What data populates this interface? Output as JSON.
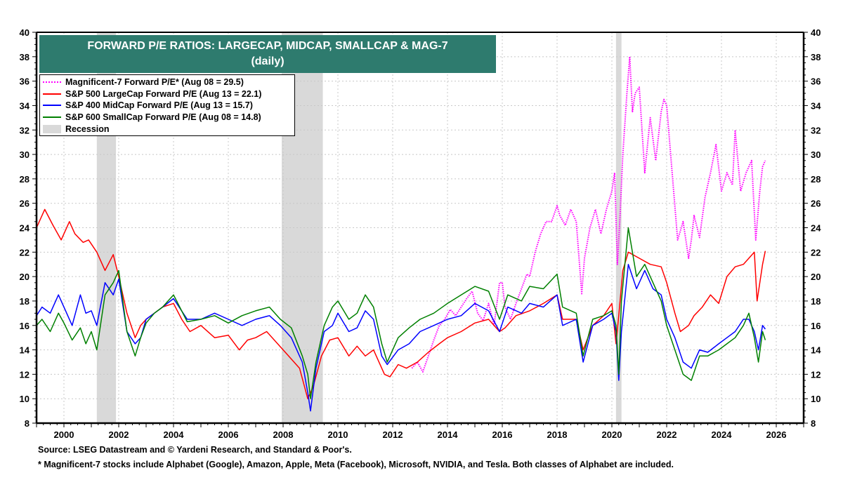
{
  "chart_data": {
    "type": "line",
    "title": "FORWARD P/E RATIOS: LARGECAP, MIDCAP, SMALLCAP & MAG-7",
    "subtitle": "(daily)",
    "xlabel": "",
    "ylabel": "",
    "xlim": [
      1999.0,
      2027.0
    ],
    "ylim": [
      8,
      40
    ],
    "y_ticks": [
      8,
      10,
      12,
      14,
      16,
      18,
      20,
      22,
      24,
      26,
      28,
      30,
      32,
      34,
      36,
      38,
      40
    ],
    "x_ticks": [
      2000,
      2002,
      2004,
      2006,
      2008,
      2010,
      2012,
      2014,
      2016,
      2018,
      2020,
      2022,
      2024,
      2026
    ],
    "grid": true,
    "legend_position": "top-left",
    "legend": [
      {
        "label": "Magnificent-7 Forward P/E* (Aug 08 = 29.5)",
        "style": "dotted",
        "color": "#ff00ff"
      },
      {
        "label": "S&P 500 LargeCap Forward P/E (Aug 13 = 22.1)",
        "style": "solid",
        "color": "#ff0000"
      },
      {
        "label": "S&P 400 MidCap Forward P/E (Aug 13 = 15.7)",
        "style": "solid",
        "color": "#0000ff"
      },
      {
        "label": "S&P 600 SmallCap Forward P/E (Aug 08 = 14.8)",
        "style": "solid",
        "color": "#008000"
      },
      {
        "label": "Recession",
        "style": "band",
        "color": "#d9d9d9"
      }
    ],
    "recessions": [
      [
        2001.2,
        2001.9
      ],
      [
        2007.95,
        2009.45
      ],
      [
        2020.15,
        2020.35
      ]
    ],
    "series": [
      {
        "name": "Magnificent-7 Forward P/E",
        "color": "#ff00ff",
        "style": "dotted",
        "x": [
          2012.7,
          2012.9,
          2013.1,
          2013.3,
          2013.5,
          2013.7,
          2013.9,
          2014.1,
          2014.3,
          2014.5,
          2014.7,
          2014.9,
          2015.1,
          2015.3,
          2015.5,
          2015.7,
          2015.9,
          2016.0,
          2016.1,
          2016.3,
          2016.5,
          2016.7,
          2016.9,
          2017.0,
          2017.2,
          2017.4,
          2017.6,
          2017.8,
          2018.0,
          2018.1,
          2018.3,
          2018.5,
          2018.7,
          2018.9,
          2019.0,
          2019.2,
          2019.4,
          2019.6,
          2019.8,
          2020.0,
          2020.1,
          2020.2,
          2020.3,
          2020.4,
          2020.55,
          2020.65,
          2020.75,
          2020.85,
          2021.0,
          2021.2,
          2021.4,
          2021.6,
          2021.8,
          2021.9,
          2022.0,
          2022.2,
          2022.4,
          2022.6,
          2022.8,
          2022.9,
          2023.0,
          2023.2,
          2023.4,
          2023.6,
          2023.8,
          2024.0,
          2024.2,
          2024.4,
          2024.5,
          2024.7,
          2024.9,
          2025.1,
          2025.25,
          2025.4,
          2025.5,
          2025.6
        ],
        "values": [
          12.5,
          13.0,
          12.2,
          13.5,
          14.8,
          16.0,
          16.5,
          17.3,
          16.8,
          17.5,
          18.2,
          18.8,
          17.0,
          16.4,
          17.8,
          16.0,
          19.5,
          19.5,
          17.5,
          16.5,
          17.8,
          19.0,
          20.2,
          20.0,
          22.0,
          23.5,
          24.5,
          24.5,
          25.8,
          25.0,
          24.2,
          25.5,
          24.5,
          18.6,
          21.5,
          24.0,
          25.5,
          23.5,
          25.5,
          27.0,
          28.5,
          21.0,
          25.0,
          30.0,
          35.0,
          38.0,
          33.5,
          35.0,
          35.5,
          28.5,
          33.0,
          29.5,
          33.5,
          34.5,
          34.0,
          28.5,
          23.0,
          24.5,
          21.5,
          23.0,
          25.0,
          23.2,
          26.5,
          28.5,
          30.8,
          27.0,
          28.5,
          27.5,
          32.0,
          27.0,
          28.5,
          29.5,
          23.0,
          27.0,
          29.0,
          29.5
        ]
      },
      {
        "name": "S&P 500 LargeCap Forward P/E",
        "color": "#ff0000",
        "style": "solid",
        "x": [
          1999.0,
          1999.3,
          1999.6,
          1999.9,
          2000.2,
          2000.4,
          2000.7,
          2000.9,
          2001.2,
          2001.5,
          2001.8,
          2002.0,
          2002.3,
          2002.6,
          2002.8,
          2003.0,
          2003.3,
          2003.6,
          2004.0,
          2004.3,
          2004.6,
          2005.0,
          2005.5,
          2006.0,
          2006.4,
          2006.7,
          2007.0,
          2007.4,
          2007.8,
          2008.2,
          2008.6,
          2008.9,
          2009.1,
          2009.4,
          2009.7,
          2010.0,
          2010.4,
          2010.7,
          2011.0,
          2011.3,
          2011.7,
          2011.9,
          2012.2,
          2012.5,
          2012.9,
          2013.3,
          2013.7,
          2014.0,
          2014.5,
          2015.0,
          2015.5,
          2015.9,
          2016.1,
          2016.5,
          2017.0,
          2017.5,
          2018.0,
          2018.2,
          2018.7,
          2018.95,
          2019.3,
          2019.7,
          2020.0,
          2020.15,
          2020.25,
          2020.4,
          2020.6,
          2021.0,
          2021.4,
          2021.8,
          2022.0,
          2022.3,
          2022.5,
          2022.8,
          2023.0,
          2023.3,
          2023.6,
          2023.9,
          2024.2,
          2024.5,
          2024.8,
          2025.0,
          2025.2,
          2025.3,
          2025.5,
          2025.6
        ],
        "values": [
          24.0,
          25.5,
          24.2,
          23.0,
          24.5,
          23.5,
          22.8,
          23.0,
          22.0,
          20.5,
          21.8,
          20.0,
          17.0,
          15.0,
          16.0,
          16.5,
          17.0,
          17.5,
          17.8,
          16.5,
          15.5,
          16.0,
          15.0,
          15.2,
          14.0,
          14.8,
          15.0,
          15.5,
          14.5,
          13.5,
          12.5,
          10.0,
          11.0,
          13.5,
          14.8,
          15.0,
          13.5,
          14.3,
          13.5,
          14.0,
          12.0,
          11.8,
          12.8,
          12.5,
          13.0,
          13.8,
          14.5,
          15.0,
          15.5,
          16.2,
          16.5,
          15.5,
          15.8,
          16.8,
          17.2,
          17.8,
          18.5,
          16.5,
          16.5,
          14.0,
          16.0,
          16.8,
          17.8,
          14.5,
          16.8,
          20.5,
          22.0,
          21.5,
          21.0,
          20.8,
          19.5,
          17.0,
          15.5,
          16.0,
          16.8,
          17.5,
          18.5,
          17.8,
          20.0,
          20.8,
          21.0,
          21.5,
          22.0,
          18.0,
          21.0,
          22.1
        ]
      },
      {
        "name": "S&P 400 MidCap Forward P/E",
        "color": "#0000ff",
        "style": "solid",
        "x": [
          1999.0,
          1999.2,
          1999.5,
          1999.8,
          2000.0,
          2000.3,
          2000.6,
          2000.8,
          2001.0,
          2001.2,
          2001.5,
          2001.8,
          2002.0,
          2002.3,
          2002.6,
          2002.8,
          2003.0,
          2003.3,
          2003.6,
          2004.0,
          2004.5,
          2005.0,
          2005.5,
          2006.0,
          2006.5,
          2007.0,
          2007.5,
          2007.9,
          2008.3,
          2008.7,
          2008.9,
          2009.0,
          2009.2,
          2009.5,
          2009.8,
          2010.0,
          2010.4,
          2010.7,
          2011.0,
          2011.3,
          2011.6,
          2011.8,
          2012.2,
          2012.6,
          2013.0,
          2013.5,
          2014.0,
          2014.5,
          2015.0,
          2015.5,
          2015.9,
          2016.2,
          2016.7,
          2017.0,
          2017.5,
          2018.0,
          2018.2,
          2018.7,
          2018.95,
          2019.3,
          2019.7,
          2020.0,
          2020.15,
          2020.25,
          2020.35,
          2020.6,
          2020.9,
          2021.2,
          2021.5,
          2021.8,
          2022.0,
          2022.3,
          2022.6,
          2022.9,
          2023.2,
          2023.5,
          2023.9,
          2024.2,
          2024.5,
          2024.8,
          2025.0,
          2025.2,
          2025.35,
          2025.5,
          2025.6
        ],
        "values": [
          16.8,
          17.5,
          17.0,
          18.5,
          17.5,
          16.0,
          18.5,
          17.0,
          17.2,
          16.0,
          19.5,
          18.5,
          19.8,
          15.5,
          14.5,
          15.0,
          16.5,
          17.0,
          17.5,
          18.2,
          16.5,
          16.5,
          17.0,
          16.5,
          16.0,
          16.5,
          16.8,
          16.0,
          15.0,
          13.0,
          10.5,
          9.0,
          12.5,
          15.5,
          16.0,
          17.0,
          15.5,
          15.8,
          17.2,
          16.5,
          13.5,
          12.8,
          14.0,
          14.5,
          15.5,
          16.0,
          16.5,
          16.8,
          17.8,
          17.2,
          15.5,
          17.5,
          17.0,
          17.8,
          17.5,
          18.5,
          16.0,
          16.5,
          13.0,
          16.0,
          16.5,
          17.0,
          15.5,
          11.5,
          15.5,
          21.0,
          19.0,
          20.5,
          19.0,
          18.5,
          16.5,
          15.0,
          13.0,
          12.5,
          14.0,
          13.8,
          14.5,
          15.0,
          15.5,
          16.5,
          16.5,
          15.5,
          14.0,
          16.0,
          15.7
        ]
      },
      {
        "name": "S&P 600 SmallCap Forward P/E",
        "color": "#008000",
        "style": "solid",
        "x": [
          1999.0,
          1999.2,
          1999.5,
          1999.8,
          2000.0,
          2000.3,
          2000.6,
          2000.8,
          2001.0,
          2001.2,
          2001.5,
          2001.8,
          2002.0,
          2002.3,
          2002.6,
          2002.8,
          2003.0,
          2003.3,
          2003.6,
          2004.0,
          2004.5,
          2005.0,
          2005.5,
          2006.0,
          2006.5,
          2007.0,
          2007.5,
          2007.9,
          2008.3,
          2008.7,
          2008.9,
          2009.0,
          2009.2,
          2009.5,
          2009.8,
          2010.0,
          2010.4,
          2010.7,
          2011.0,
          2011.3,
          2011.6,
          2011.8,
          2012.2,
          2012.6,
          2013.0,
          2013.5,
          2014.0,
          2014.5,
          2015.0,
          2015.5,
          2015.9,
          2016.2,
          2016.7,
          2017.0,
          2017.5,
          2018.0,
          2018.2,
          2018.7,
          2018.95,
          2019.3,
          2019.7,
          2020.0,
          2020.15,
          2020.25,
          2020.35,
          2020.6,
          2020.9,
          2021.2,
          2021.5,
          2021.8,
          2022.0,
          2022.3,
          2022.6,
          2022.9,
          2023.2,
          2023.5,
          2023.9,
          2024.2,
          2024.5,
          2024.8,
          2025.0,
          2025.2,
          2025.35,
          2025.5,
          2025.6
        ],
        "values": [
          16.0,
          16.5,
          15.5,
          17.0,
          16.2,
          14.8,
          15.8,
          14.5,
          15.5,
          14.0,
          18.5,
          19.5,
          20.5,
          15.5,
          13.5,
          15.0,
          16.2,
          17.0,
          17.5,
          18.5,
          16.3,
          16.5,
          16.8,
          16.2,
          16.8,
          17.2,
          17.5,
          16.5,
          15.8,
          13.5,
          12.0,
          10.0,
          13.0,
          16.0,
          17.5,
          18.0,
          16.5,
          17.0,
          18.5,
          17.5,
          14.5,
          13.0,
          15.0,
          15.8,
          16.5,
          17.0,
          17.8,
          18.5,
          19.2,
          18.8,
          16.5,
          18.5,
          18.0,
          19.2,
          19.0,
          20.2,
          17.5,
          17.0,
          13.5,
          16.5,
          16.8,
          17.2,
          16.0,
          12.0,
          18.0,
          24.0,
          20.0,
          21.0,
          19.5,
          18.0,
          16.0,
          14.0,
          12.0,
          11.5,
          13.5,
          13.5,
          14.0,
          14.5,
          15.0,
          16.0,
          17.0,
          15.0,
          13.0,
          15.5,
          14.8
        ]
      }
    ]
  },
  "footer": {
    "source": "Source: LSEG Datastream and © Yardeni Research, and Standard & Poor's.",
    "note": "* Magnificent-7 stocks include Alphabet (Google), Amazon, Apple, Meta (Facebook), Microsoft, NVIDIA, and Tesla. Both classes of Alphabet are included."
  }
}
